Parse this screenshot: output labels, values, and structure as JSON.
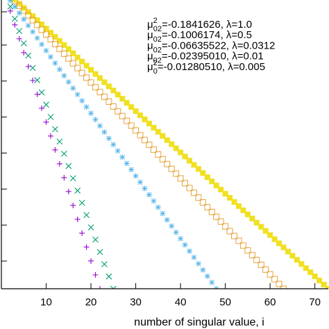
{
  "chart_data": {
    "type": "scatter",
    "title": "",
    "xlabel": "number of singular value, i",
    "ylabel": "",
    "xlim": [
      0,
      73
    ],
    "x_ticks": [
      10,
      20,
      30,
      40,
      50,
      60,
      70
    ],
    "x_tick_labels": [
      "10",
      "20",
      "30",
      "40",
      "50",
      "60",
      "70"
    ],
    "ylim": [
      0,
      1
    ],
    "legend_position": "top-right",
    "series": [
      {
        "name": "-0.1841626, λ=1.0",
        "legend_main": "μ",
        "legend_sub": "02",
        "legend_sup": "2",
        "legend_value": "=-0.1841626, λ=1.0",
        "marker": "filled-square",
        "color": "#f0e020",
        "x_start": 1,
        "x_end": 73,
        "y_start": 1.03,
        "y_end": 0.0
      },
      {
        "name": "-0.1006174, λ=0.5",
        "legend_main": "μ",
        "legend_sub": "02",
        "legend_sup": "",
        "legend_value": "=-0.1006174, λ=0.5",
        "marker": "open-square",
        "color": "#e8a33c",
        "x_start": 1,
        "x_end": 63,
        "y_start": 1.03,
        "y_end": 0.0
      },
      {
        "name": "-0.06635522, λ=0.0312",
        "legend_main": "μ",
        "legend_sub": "02",
        "legend_sup": "",
        "legend_value": "=-0.06635522, λ=0.0312",
        "marker": "asterisk",
        "color": "#56b4e9",
        "x_start": 1,
        "x_end": 48,
        "y_start": 1.02,
        "y_end": 0.0
      },
      {
        "name": "-0.02395010, λ=0.01",
        "legend_main": "μ",
        "legend_sub": "02",
        "legend_sup": "",
        "legend_value": "=-0.02395010, λ=0.01",
        "marker": "x",
        "color": "#009e73",
        "x_start": 1,
        "x_end": 25,
        "y_start": 1.02,
        "y_end": 0.0
      },
      {
        "name": "-0.01280510, λ=0.005",
        "legend_main": "μ",
        "legend_sub": "0",
        "legend_sup": "2",
        "legend_value": "=-0.01280510, λ=0.005",
        "marker": "plus",
        "color": "#9400d3",
        "x_start": 1,
        "x_end": 22,
        "y_start": 1.01,
        "y_end": 0.0
      }
    ]
  }
}
